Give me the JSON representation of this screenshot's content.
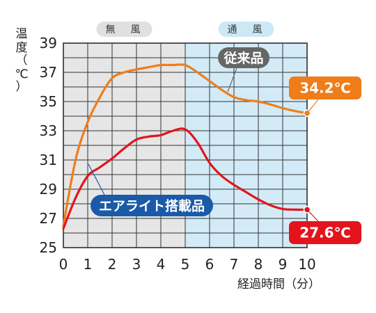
{
  "chart_data": {
    "type": "line",
    "x": [
      0,
      0.5,
      1,
      1.5,
      2,
      2.5,
      3,
      3.5,
      4,
      4.5,
      5,
      5.5,
      6,
      6.5,
      7,
      7.5,
      8,
      8.5,
      9,
      9.5,
      10
    ],
    "series": [
      {
        "name": "従来品",
        "color": "#ee7d1a",
        "values": [
          26.5,
          31.0,
          33.6,
          35.3,
          36.6,
          37.0,
          37.2,
          37.35,
          37.5,
          37.5,
          37.5,
          37.0,
          36.4,
          35.8,
          35.3,
          35.1,
          35.0,
          34.8,
          34.55,
          34.35,
          34.2
        ],
        "end_label": "34.2℃"
      },
      {
        "name": "エアライト搭載品",
        "color": "#e3141e",
        "values": [
          26.3,
          28.4,
          29.9,
          30.5,
          31.1,
          31.8,
          32.4,
          32.6,
          32.7,
          33.0,
          33.1,
          32.2,
          30.8,
          29.9,
          29.3,
          28.8,
          28.3,
          27.9,
          27.65,
          27.6,
          27.6
        ],
        "end_label": "27.6℃"
      }
    ],
    "xlim": [
      0,
      10
    ],
    "ylim": [
      25,
      39
    ],
    "xticks": [
      0,
      1,
      2,
      3,
      4,
      5,
      6,
      7,
      8,
      9,
      10
    ],
    "yticks": [
      25,
      27,
      29,
      31,
      33,
      35,
      37,
      39
    ],
    "xlabel": "経過時間（分）",
    "ylabel": [
      "温",
      "度",
      "（",
      "℃",
      "）"
    ],
    "grid": true,
    "zones": [
      {
        "label": "無　風",
        "from": 0,
        "to": 5,
        "color": "#e6e6e6",
        "tag_color": "#e0e0e0"
      },
      {
        "label": "通　風",
        "from": 5,
        "to": 10,
        "color": "#d3ebf7",
        "tag_color": "#cde8f5"
      }
    ],
    "callouts": [
      {
        "series": 0,
        "text": "従来品",
        "color": "#666666"
      },
      {
        "series": 1,
        "text": "エアライト搭載品",
        "color": "#1a5aa8"
      }
    ]
  }
}
